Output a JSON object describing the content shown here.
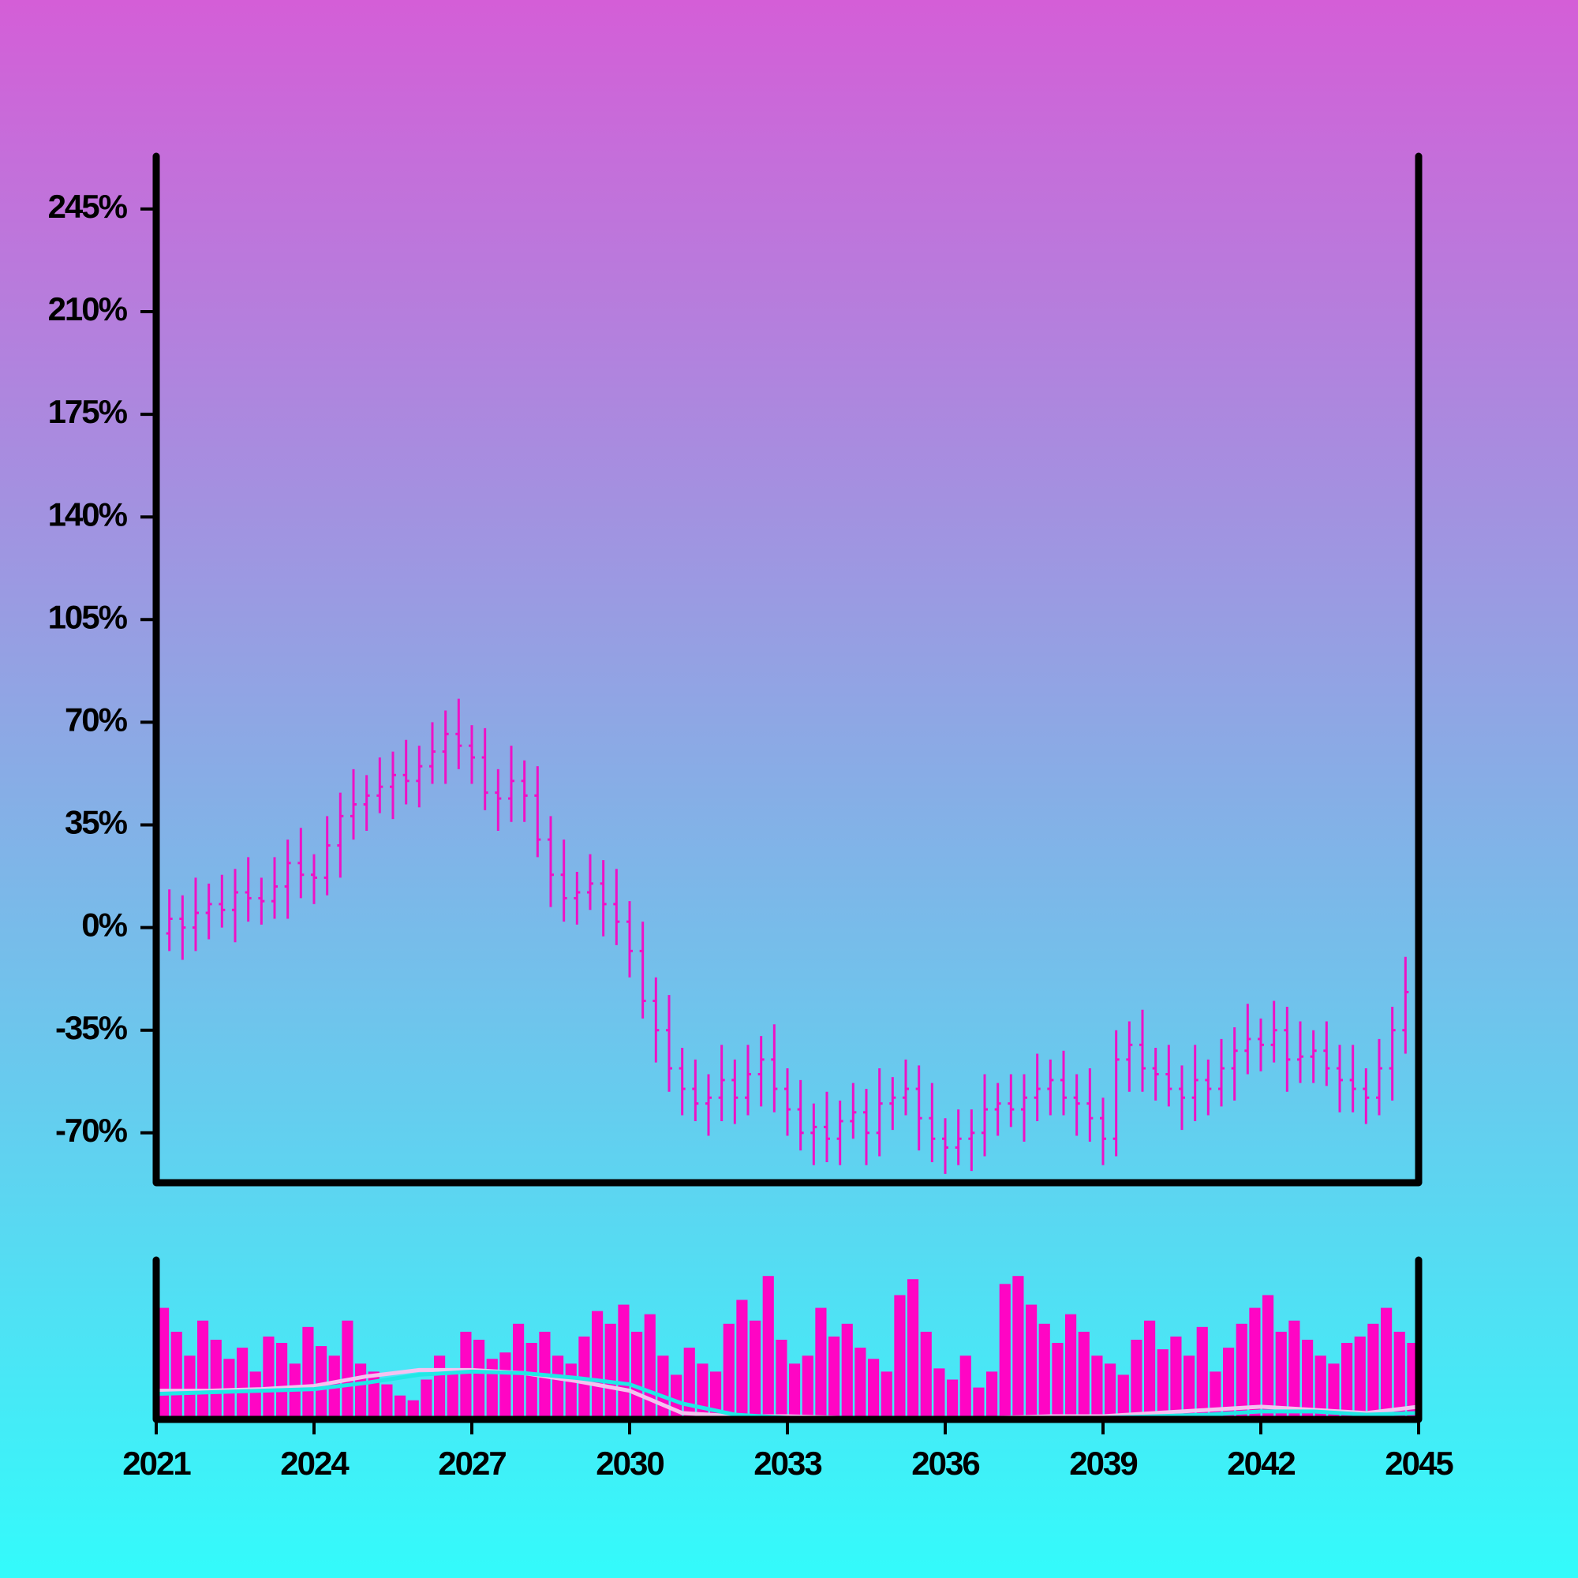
{
  "chart_data": [
    {
      "type": "ohlc",
      "color": "#ee11c6",
      "x": [
        2021,
        2021.25,
        2021.5,
        2021.75,
        2022,
        2022.25,
        2022.5,
        2022.75,
        2023,
        2023.25,
        2023.5,
        2023.75,
        2024,
        2024.25,
        2024.5,
        2024.75,
        2025,
        2025.25,
        2025.5,
        2025.75,
        2026,
        2026.25,
        2026.5,
        2026.75,
        2027,
        2027.25,
        2027.5,
        2027.75,
        2028,
        2028.25,
        2028.5,
        2028.75,
        2029,
        2029.25,
        2029.5,
        2029.75,
        2030,
        2030.25,
        2030.5,
        2030.75,
        2031,
        2031.25,
        2031.5,
        2031.75,
        2032,
        2032.25,
        2032.5,
        2032.75,
        2033,
        2033.25,
        2033.5,
        2033.75,
        2034,
        2034.25,
        2034.5,
        2034.75,
        2035,
        2035.25,
        2035.5,
        2035.75,
        2036,
        2036.25,
        2036.5,
        2036.75,
        2037,
        2037.25,
        2037.5,
        2037.75,
        2038,
        2038.25,
        2038.5,
        2038.75,
        2039,
        2039.25,
        2039.5,
        2039.75,
        2040,
        2040.25,
        2040.5,
        2040.75,
        2041,
        2041.25,
        2041.5,
        2041.75,
        2042,
        2042.25,
        2042.5,
        2042.75,
        2043,
        2043.25,
        2043.5,
        2043.75,
        2044,
        2044.25,
        2044.5,
        2044.75
      ],
      "open": [
        -5,
        -2,
        3,
        0,
        5,
        8,
        6,
        12,
        10,
        9,
        14,
        22,
        18,
        17,
        28,
        38,
        42,
        45,
        48,
        52,
        50,
        55,
        60,
        66,
        62,
        58,
        46,
        44,
        50,
        45,
        30,
        18,
        10,
        12,
        15,
        8,
        2,
        -8,
        -25,
        -35,
        -48,
        -55,
        -60,
        -58,
        -52,
        -58,
        -50,
        -45,
        -55,
        -62,
        -70,
        -68,
        -72,
        -66,
        -63,
        -70,
        -60,
        -58,
        -55,
        -65,
        -72,
        -75,
        -72,
        -70,
        -62,
        -60,
        -62,
        -58,
        -55,
        -52,
        -58,
        -60,
        -65,
        -72,
        -45,
        -40,
        -48,
        -50,
        -55,
        -58,
        -52,
        -55,
        -48,
        -42,
        -38,
        -40,
        -35,
        -45,
        -44,
        -42,
        -48,
        -52,
        -55,
        -58,
        -48,
        -35
      ],
      "high": [
        5,
        13,
        11,
        17,
        15,
        18,
        20,
        24,
        17,
        24,
        30,
        34,
        25,
        38,
        46,
        54,
        52,
        58,
        60,
        64,
        62,
        70,
        74,
        78,
        69,
        68,
        54,
        62,
        57,
        55,
        38,
        30,
        19,
        25,
        23,
        20,
        9,
        2,
        -17,
        -23,
        -41,
        -45,
        -50,
        -40,
        -45,
        -40,
        -37,
        -33,
        -48,
        -52,
        -60,
        -56,
        -59,
        -53,
        -55,
        -48,
        -51,
        -45,
        -47,
        -53,
        -65,
        -62,
        -62,
        -50,
        -53,
        -50,
        -50,
        -43,
        -45,
        -42,
        -50,
        -48,
        -58,
        -35,
        -32,
        -28,
        -41,
        -40,
        -47,
        -40,
        -45,
        -38,
        -34,
        -26,
        -31,
        -25,
        -27,
        -32,
        -35,
        -32,
        -40,
        -40,
        -48,
        -38,
        -27,
        -10
      ],
      "low": [
        -14,
        -8,
        -11,
        -8,
        -4,
        0,
        -5,
        2,
        1,
        3,
        3,
        10,
        8,
        11,
        17,
        30,
        33,
        39,
        37,
        42,
        41,
        49,
        49,
        54,
        49,
        40,
        33,
        36,
        36,
        24,
        7,
        2,
        1,
        6,
        -3,
        -6,
        -17,
        -31,
        -46,
        -56,
        -64,
        -66,
        -71,
        -66,
        -67,
        -64,
        -61,
        -63,
        -71,
        -76,
        -81,
        -80,
        -81,
        -72,
        -81,
        -78,
        -69,
        -64,
        -76,
        -80,
        -84,
        -81,
        -83,
        -78,
        -71,
        -68,
        -73,
        -66,
        -64,
        -64,
        -71,
        -73,
        -81,
        -78,
        -56,
        -56,
        -59,
        -61,
        -69,
        -66,
        -64,
        -61,
        -59,
        -50,
        -49,
        -46,
        -56,
        -53,
        -53,
        -54,
        -63,
        -63,
        -67,
        -64,
        -59,
        -43
      ],
      "close": [
        -2,
        3,
        0,
        5,
        8,
        6,
        12,
        10,
        9,
        14,
        22,
        18,
        17,
        28,
        38,
        42,
        45,
        48,
        52,
        50,
        55,
        60,
        66,
        62,
        58,
        46,
        44,
        50,
        45,
        30,
        18,
        10,
        12,
        15,
        8,
        2,
        -8,
        -25,
        -35,
        -48,
        -55,
        -60,
        -58,
        -52,
        -58,
        -50,
        -45,
        -55,
        -62,
        -70,
        -68,
        -72,
        -66,
        -63,
        -70,
        -60,
        -58,
        -55,
        -65,
        -72,
        -75,
        -72,
        -70,
        -62,
        -60,
        -62,
        -58,
        -55,
        -52,
        -58,
        -60,
        -65,
        -72,
        -45,
        -40,
        -48,
        -50,
        -55,
        -58,
        -52,
        -55,
        -48,
        -42,
        -38,
        -40,
        -35,
        -45,
        -44,
        -42,
        -48,
        -52,
        -55,
        -58,
        -48,
        -35,
        -22
      ],
      "xlim": [
        2021,
        2045
      ],
      "ylim": [
        -87,
        263
      ],
      "yticks": [
        {
          "value": -70,
          "label": "-70%"
        },
        {
          "value": -35,
          "label": "-35%"
        },
        {
          "value": 0,
          "label": "0%"
        },
        {
          "value": 35,
          "label": "35%"
        },
        {
          "value": 70,
          "label": "70%"
        },
        {
          "value": 105,
          "label": "105%"
        },
        {
          "value": 140,
          "label": "140%"
        },
        {
          "value": 175,
          "label": "175%"
        },
        {
          "value": 210,
          "label": "210%"
        },
        {
          "value": 245,
          "label": "245%"
        }
      ]
    },
    {
      "type": "bar",
      "color": "#ff05c4",
      "x": [
        2021,
        2021.25,
        2021.5,
        2021.75,
        2022,
        2022.25,
        2022.5,
        2022.75,
        2023,
        2023.25,
        2023.5,
        2023.75,
        2024,
        2024.25,
        2024.5,
        2024.75,
        2025,
        2025.25,
        2025.5,
        2025.75,
        2026,
        2026.25,
        2026.5,
        2026.75,
        2027,
        2027.25,
        2027.5,
        2027.75,
        2028,
        2028.25,
        2028.5,
        2028.75,
        2029,
        2029.25,
        2029.5,
        2029.75,
        2030,
        2030.25,
        2030.5,
        2030.75,
        2031,
        2031.25,
        2031.5,
        2031.75,
        2032,
        2032.25,
        2032.5,
        2032.75,
        2033,
        2033.25,
        2033.5,
        2033.75,
        2034,
        2034.25,
        2034.5,
        2034.75,
        2035,
        2035.25,
        2035.5,
        2035.75,
        2036,
        2036.25,
        2036.5,
        2036.75,
        2037,
        2037.25,
        2037.5,
        2037.75,
        2038,
        2038.25,
        2038.5,
        2038.75,
        2039,
        2039.25,
        2039.5,
        2039.75,
        2040,
        2040.25,
        2040.5,
        2040.75,
        2041,
        2041.25,
        2041.5,
        2041.75,
        2042,
        2042.25,
        2042.5,
        2042.75,
        2043,
        2043.25,
        2043.5,
        2043.75,
        2044,
        2044.25,
        2044.5,
        2044.75
      ],
      "values": [
        70,
        55,
        40,
        62,
        50,
        38,
        45,
        30,
        52,
        48,
        35,
        58,
        46,
        40,
        62,
        35,
        30,
        22,
        15,
        12,
        25,
        40,
        32,
        55,
        50,
        38,
        42,
        60,
        48,
        55,
        40,
        35,
        52,
        68,
        60,
        72,
        55,
        66,
        40,
        28,
        45,
        35,
        30,
        60,
        75,
        62,
        90,
        50,
        35,
        40,
        70,
        52,
        60,
        45,
        38,
        30,
        78,
        88,
        55,
        32,
        25,
        40,
        20,
        30,
        85,
        90,
        72,
        60,
        48,
        66,
        55,
        40,
        35,
        28,
        50,
        62,
        44,
        52,
        40,
        58,
        30,
        45,
        60,
        70,
        78,
        55,
        62,
        50,
        40,
        35,
        48,
        52,
        60,
        70,
        55,
        48
      ],
      "series": [
        {
          "color": "#f4c2f0",
          "x": [
            2021,
            2022,
            2023,
            2024,
            2025,
            2026,
            2027,
            2028,
            2029,
            2030,
            2031,
            2032,
            2033,
            2034,
            2035,
            2036,
            2037,
            2038,
            2039,
            2040,
            2041,
            2042,
            2043,
            2044,
            2045
          ],
          "values": [
            18,
            18,
            19,
            21,
            27,
            31,
            31,
            29,
            24,
            18,
            4,
            2,
            2,
            1,
            1,
            0,
            1,
            2,
            2,
            4,
            6,
            8,
            6,
            4,
            8
          ]
        },
        {
          "color": "#22e8e6",
          "x": [
            2021,
            2022,
            2023,
            2024,
            2025,
            2026,
            2027,
            2028,
            2029,
            2030,
            2031,
            2032,
            2033,
            2034,
            2035,
            2036,
            2037,
            2038,
            2039,
            2040,
            2041,
            2042,
            2043,
            2044,
            2045
          ],
          "values": [
            16,
            17,
            18,
            19,
            23,
            28,
            30,
            29,
            26,
            22,
            10,
            3,
            1,
            1,
            0,
            0,
            0,
            1,
            1,
            2,
            3,
            5,
            5,
            3,
            4
          ]
        }
      ],
      "xlim": [
        2021,
        2045
      ],
      "ylim": [
        0,
        100
      ],
      "xticks": [
        2021,
        2024,
        2027,
        2030,
        2033,
        2036,
        2039,
        2042,
        2045
      ]
    }
  ]
}
